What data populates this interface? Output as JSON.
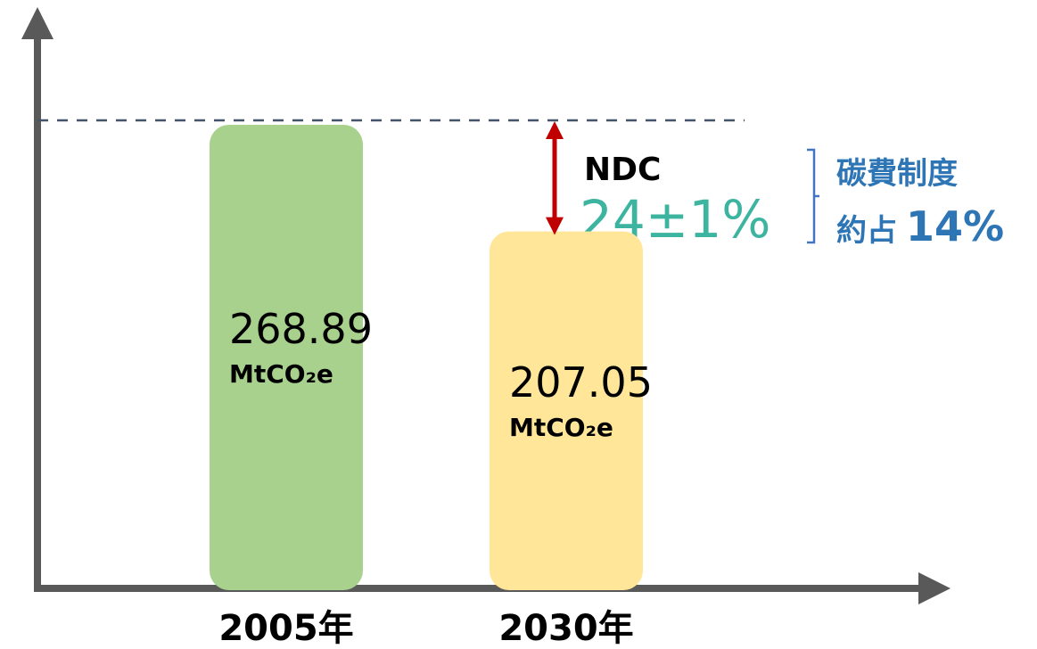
{
  "chart_data": {
    "type": "bar",
    "categories": [
      "2005年",
      "2030年"
    ],
    "values": [
      268.89,
      207.05
    ],
    "unit": "MtCO₂e",
    "colors": [
      "#a9d18e",
      "#ffe699"
    ],
    "annotations": {
      "ndc": "NDC",
      "target": "24±1%",
      "scheme": "碳費制度",
      "share_prefix": "約占",
      "share": "14%"
    }
  }
}
